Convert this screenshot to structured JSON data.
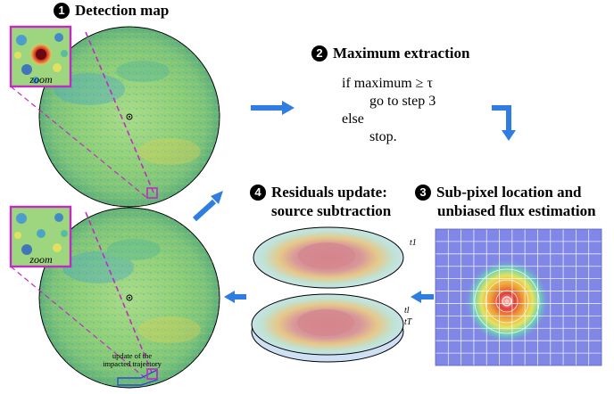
{
  "steps": {
    "s1": {
      "num": "1",
      "title": "Detection map"
    },
    "s2": {
      "num": "2",
      "title": "Maximum extraction"
    },
    "s3": {
      "num": "3",
      "title_line1": "Sub-pixel location and",
      "title_line2": "unbiased flux estimation"
    },
    "s4": {
      "num": "4",
      "title_line1": "Residuals update:",
      "title_line2": "source subtraction"
    }
  },
  "algorithm": {
    "line1": "if maximum ≥ τ",
    "line2": "go to step 3",
    "line3": "else",
    "line4": "stop."
  },
  "zoom_label_top": "zoom",
  "zoom_label_bottom": "zoom",
  "trajectory_label_line1": "update of the",
  "trajectory_label_line2": "impacted trajectory",
  "frame_labels": {
    "t1": "t1",
    "tl": "tl",
    "tT": "tT"
  },
  "colors": {
    "arrow": "#2f7de1",
    "magenta": "#c02cc0",
    "map_green": "#8fd07a",
    "hot_red": "#c0202a",
    "grid_bg": "#8087e6"
  }
}
